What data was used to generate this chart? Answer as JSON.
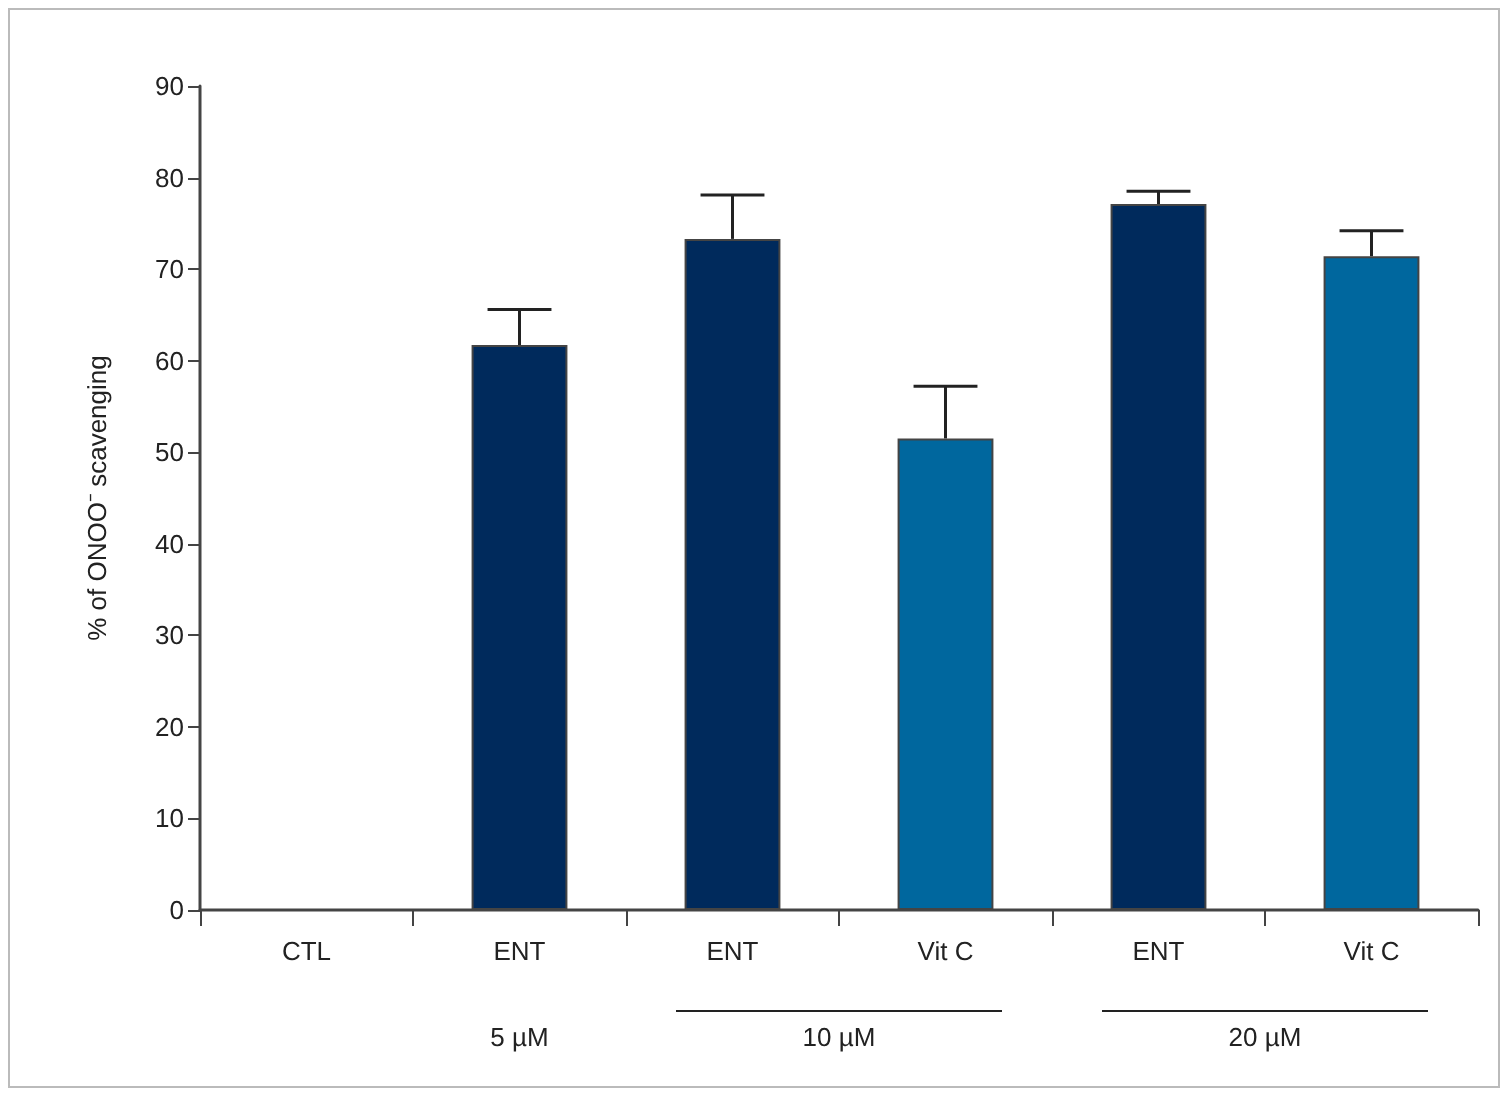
{
  "chart_data": {
    "type": "bar",
    "ylabel": "% of ONOO⁻ scavenging",
    "categories": [
      "CTL",
      "ENT",
      "ENT",
      "Vit C",
      "ENT",
      "Vit C"
    ],
    "values": [
      null,
      61.7,
      73.3,
      51.5,
      77.1,
      71.4
    ],
    "colors": [
      "#002a5c",
      "#002a5c",
      "#002a5c",
      "#00679e",
      "#002a5c",
      "#00679e"
    ],
    "errors": [
      null,
      [
        61.7,
        65.6
      ],
      [
        73.3,
        78.1
      ],
      [
        51.5,
        57.2
      ],
      [
        77.1,
        78.5
      ],
      [
        71.4,
        74.2
      ]
    ],
    "ylim": [
      0,
      90
    ],
    "yticks": [
      0,
      10,
      20,
      30,
      40,
      50,
      60,
      70,
      80,
      90
    ],
    "grid": false,
    "annotations": [
      "5 µM",
      "10 µM",
      "20 µM"
    ]
  }
}
